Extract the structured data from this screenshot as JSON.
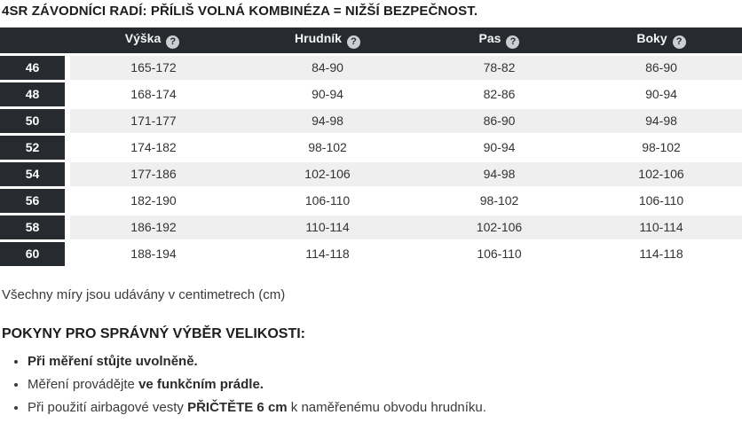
{
  "page": {
    "title": "4SR ZÁVODNÍCI RADÍ: PŘÍLIŠ VOLNÁ KOMBINÉZA = NIŽŠÍ BEZPEČNOST.",
    "units_note": "Všechny míry jsou udávány v centimetrech (cm)",
    "instructions_heading": "POKYNY PRO SPRÁVNÝ VÝBĚR VELIKOSTI:"
  },
  "size_table": {
    "columns": [
      "Výška",
      "Hrudník",
      "Pas",
      "Boky"
    ],
    "help_icon_glyph": "?",
    "rows": [
      {
        "size": "46",
        "values": [
          "165-172",
          "84-90",
          "78-82",
          "86-90"
        ]
      },
      {
        "size": "48",
        "values": [
          "168-174",
          "90-94",
          "82-86",
          "90-94"
        ]
      },
      {
        "size": "50",
        "values": [
          "171-177",
          "94-98",
          "86-90",
          "94-98"
        ]
      },
      {
        "size": "52",
        "values": [
          "174-182",
          "98-102",
          "90-94",
          "98-102"
        ]
      },
      {
        "size": "54",
        "values": [
          "177-186",
          "102-106",
          "94-98",
          "102-106"
        ]
      },
      {
        "size": "56",
        "values": [
          "182-190",
          "106-110",
          "98-102",
          "106-110"
        ]
      },
      {
        "size": "58",
        "values": [
          "186-192",
          "110-114",
          "102-106",
          "110-114"
        ]
      },
      {
        "size": "60",
        "values": [
          "188-194",
          "114-118",
          "106-110",
          "114-118"
        ]
      }
    ]
  },
  "instructions": [
    {
      "segments": [
        {
          "text": "Při měření stůjte uvolněně.",
          "bold": true
        }
      ]
    },
    {
      "segments": [
        {
          "text": "Měření provádějte ",
          "bold": false
        },
        {
          "text": "ve funkčním prádle.",
          "bold": true
        }
      ]
    },
    {
      "segments": [
        {
          "text": "Při použití airbagové vesty ",
          "bold": false
        },
        {
          "text": "PŘIČTĚTE 6 cm",
          "bold": true
        },
        {
          "text": " k naměřenému obvodu hrudníku.",
          "bold": false
        }
      ]
    }
  ],
  "colors": {
    "table_dark": "#272a2f",
    "row_alt": "#efefef",
    "header_text": "#f5f6f6",
    "body_text": "#333333",
    "help_icon_bg": "#ccced1"
  }
}
